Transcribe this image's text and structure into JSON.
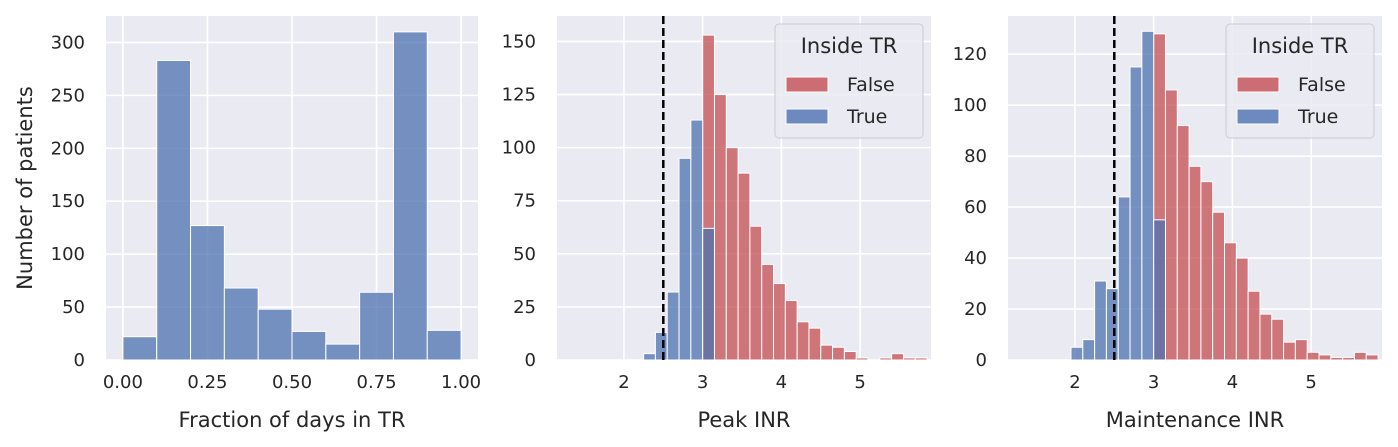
{
  "chart_data": [
    {
      "type": "bar",
      "xlabel": "Fraction of days in TR",
      "ylabel": "Number of patients",
      "xlim": [
        -0.05,
        1.05
      ],
      "ylim": [
        0,
        325
      ],
      "xticks": [
        0.0,
        0.25,
        0.5,
        0.75,
        1.0
      ],
      "xtick_labels": [
        "0.00",
        "0.25",
        "0.50",
        "0.75",
        "1.00"
      ],
      "yticks": [
        0,
        50,
        100,
        150,
        200,
        250,
        300
      ],
      "ytick_labels": [
        "0",
        "50",
        "100",
        "150",
        "200",
        "250",
        "300"
      ],
      "grid": true,
      "series": [
        {
          "color": "#4c72b0",
          "bins": [
            {
              "x0": 0.0,
              "x1": 0.1,
              "v": 22
            },
            {
              "x0": 0.1,
              "x1": 0.2,
              "v": 283
            },
            {
              "x0": 0.2,
              "x1": 0.3,
              "v": 127
            },
            {
              "x0": 0.3,
              "x1": 0.4,
              "v": 68
            },
            {
              "x0": 0.4,
              "x1": 0.5,
              "v": 48
            },
            {
              "x0": 0.5,
              "x1": 0.6,
              "v": 27
            },
            {
              "x0": 0.6,
              "x1": 0.7,
              "v": 15
            },
            {
              "x0": 0.7,
              "x1": 0.8,
              "v": 64
            },
            {
              "x0": 0.8,
              "x1": 0.9,
              "v": 310
            },
            {
              "x0": 0.9,
              "x1": 1.0,
              "v": 28
            }
          ]
        }
      ]
    },
    {
      "type": "bar",
      "xlabel": "Peak INR",
      "ylabel": "",
      "xlim": [
        1.15,
        5.9
      ],
      "ylim": [
        0,
        162
      ],
      "xticks": [
        2,
        3,
        4,
        5
      ],
      "xtick_labels": [
        "2",
        "3",
        "4",
        "5"
      ],
      "yticks": [
        0,
        25,
        50,
        75,
        100,
        125,
        150
      ],
      "ytick_labels": [
        "0",
        "25",
        "50",
        "75",
        "100",
        "125",
        "150"
      ],
      "grid": true,
      "vline": 2.5,
      "legend": {
        "title": "Inside TR",
        "position": "top-right"
      },
      "series": [
        {
          "name": "False",
          "color": "#c44e52",
          "bins": [
            {
              "x0": 3.0,
              "x1": 3.15,
              "v": 153
            },
            {
              "x0": 3.15,
              "x1": 3.3,
              "v": 125
            },
            {
              "x0": 3.3,
              "x1": 3.45,
              "v": 100
            },
            {
              "x0": 3.45,
              "x1": 3.6,
              "v": 88
            },
            {
              "x0": 3.6,
              "x1": 3.75,
              "v": 63
            },
            {
              "x0": 3.75,
              "x1": 3.9,
              "v": 45
            },
            {
              "x0": 3.9,
              "x1": 4.05,
              "v": 36
            },
            {
              "x0": 4.05,
              "x1": 4.2,
              "v": 28
            },
            {
              "x0": 4.2,
              "x1": 4.35,
              "v": 18
            },
            {
              "x0": 4.35,
              "x1": 4.5,
              "v": 15
            },
            {
              "x0": 4.5,
              "x1": 4.65,
              "v": 7
            },
            {
              "x0": 4.65,
              "x1": 4.8,
              "v": 6
            },
            {
              "x0": 4.8,
              "x1": 4.95,
              "v": 4
            },
            {
              "x0": 4.95,
              "x1": 5.1,
              "v": 1
            },
            {
              "x0": 5.25,
              "x1": 5.4,
              "v": 1
            },
            {
              "x0": 5.4,
              "x1": 5.55,
              "v": 3
            },
            {
              "x0": 5.55,
              "x1": 5.7,
              "v": 1
            },
            {
              "x0": 5.7,
              "x1": 5.85,
              "v": 1
            }
          ]
        },
        {
          "name": "True",
          "color": "#4c72b0",
          "bins": [
            {
              "x0": 2.25,
              "x1": 2.4,
              "v": 3
            },
            {
              "x0": 2.4,
              "x1": 2.55,
              "v": 13
            },
            {
              "x0": 2.55,
              "x1": 2.7,
              "v": 32
            },
            {
              "x0": 2.7,
              "x1": 2.85,
              "v": 95
            },
            {
              "x0": 2.85,
              "x1": 3.0,
              "v": 113
            },
            {
              "x0": 3.0,
              "x1": 3.15,
              "v": 62
            }
          ]
        }
      ]
    },
    {
      "type": "bar",
      "xlabel": "Maintenance INR",
      "ylabel": "",
      "xlim": [
        1.15,
        5.9
      ],
      "ylim": [
        0,
        135
      ],
      "xticks": [
        2,
        3,
        4,
        5
      ],
      "xtick_labels": [
        "2",
        "3",
        "4",
        "5"
      ],
      "yticks": [
        0,
        20,
        40,
        60,
        80,
        100,
        120
      ],
      "ytick_labels": [
        "0",
        "20",
        "40",
        "60",
        "80",
        "100",
        "120"
      ],
      "grid": true,
      "vline": 2.5,
      "legend": {
        "title": "Inside TR",
        "position": "top-right"
      },
      "series": [
        {
          "name": "False",
          "color": "#c44e52",
          "bins": [
            {
              "x0": 3.0,
              "x1": 3.15,
              "v": 128
            },
            {
              "x0": 3.15,
              "x1": 3.3,
              "v": 106
            },
            {
              "x0": 3.3,
              "x1": 3.45,
              "v": 92
            },
            {
              "x0": 3.45,
              "x1": 3.6,
              "v": 76
            },
            {
              "x0": 3.6,
              "x1": 3.75,
              "v": 70
            },
            {
              "x0": 3.75,
              "x1": 3.9,
              "v": 58
            },
            {
              "x0": 3.9,
              "x1": 4.05,
              "v": 46
            },
            {
              "x0": 4.05,
              "x1": 4.2,
              "v": 40
            },
            {
              "x0": 4.2,
              "x1": 4.35,
              "v": 27
            },
            {
              "x0": 4.35,
              "x1": 4.5,
              "v": 18
            },
            {
              "x0": 4.5,
              "x1": 4.65,
              "v": 16
            },
            {
              "x0": 4.65,
              "x1": 4.8,
              "v": 7
            },
            {
              "x0": 4.8,
              "x1": 4.95,
              "v": 8
            },
            {
              "x0": 4.95,
              "x1": 5.1,
              "v": 3
            },
            {
              "x0": 5.1,
              "x1": 5.25,
              "v": 2
            },
            {
              "x0": 5.25,
              "x1": 5.4,
              "v": 1
            },
            {
              "x0": 5.4,
              "x1": 5.55,
              "v": 1
            },
            {
              "x0": 5.55,
              "x1": 5.7,
              "v": 3
            },
            {
              "x0": 5.7,
              "x1": 5.85,
              "v": 2
            }
          ]
        },
        {
          "name": "True",
          "color": "#4c72b0",
          "bins": [
            {
              "x0": 1.95,
              "x1": 2.1,
              "v": 5
            },
            {
              "x0": 2.1,
              "x1": 2.25,
              "v": 8
            },
            {
              "x0": 2.25,
              "x1": 2.4,
              "v": 31
            },
            {
              "x0": 2.4,
              "x1": 2.55,
              "v": 28
            },
            {
              "x0": 2.55,
              "x1": 2.7,
              "v": 64
            },
            {
              "x0": 2.7,
              "x1": 2.85,
              "v": 115
            },
            {
              "x0": 2.85,
              "x1": 3.0,
              "v": 129
            },
            {
              "x0": 3.0,
              "x1": 3.15,
              "v": 55
            }
          ]
        }
      ]
    }
  ]
}
